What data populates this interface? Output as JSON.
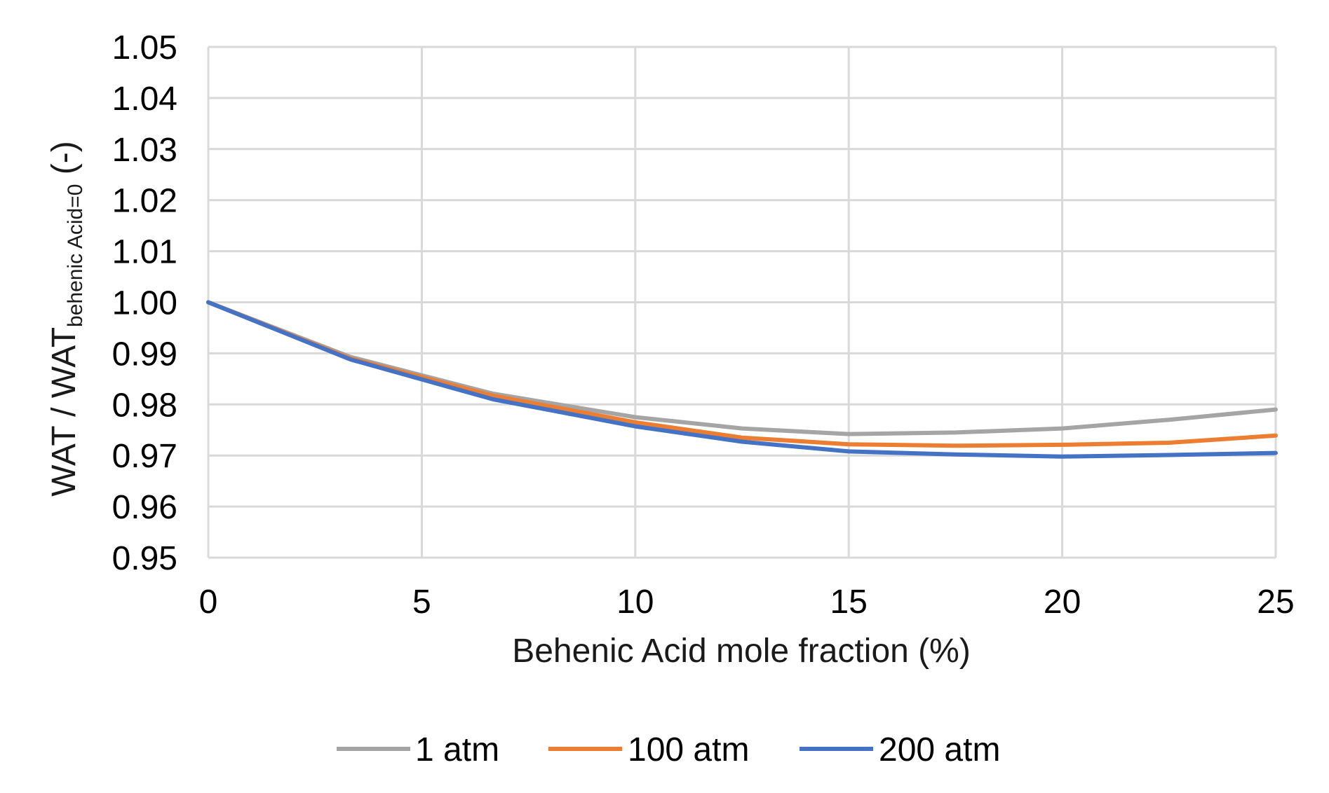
{
  "chart_data": {
    "type": "line",
    "title": "",
    "xlabel": "Behenic Acid mole fraction (%)",
    "ylabel": {
      "main": "WAT / WAT",
      "subscript": "behenic Acid=0",
      "suffix": " (-)"
    },
    "xlim": [
      0,
      25
    ],
    "ylim": [
      0.95,
      1.05
    ],
    "xticks": [
      0,
      5,
      10,
      15,
      20,
      25
    ],
    "xtick_labels": [
      "0",
      "5",
      "10",
      "15",
      "20",
      "25"
    ],
    "yticks": [
      0.95,
      0.96,
      0.97,
      0.98,
      0.99,
      1.0,
      1.01,
      1.02,
      1.03,
      1.04,
      1.05
    ],
    "ytick_labels": [
      "0.95",
      "0.96",
      "0.97",
      "0.98",
      "0.99",
      "1.00",
      "1.01",
      "1.02",
      "1.03",
      "1.04",
      "1.05"
    ],
    "grid": true,
    "legend_position": "bottom",
    "series": [
      {
        "name": "1 atm",
        "color": "#a5a5a5",
        "x": [
          0,
          3.33,
          6.67,
          10,
          12.5,
          15,
          17.5,
          20,
          22.5,
          25
        ],
        "y": [
          1.0,
          0.9893,
          0.9821,
          0.9775,
          0.9753,
          0.9742,
          0.9745,
          0.9753,
          0.977,
          0.979
        ]
      },
      {
        "name": "100 atm",
        "color": "#ed7d31",
        "x": [
          0,
          3.33,
          6.67,
          10,
          12.5,
          15,
          17.5,
          20,
          22.5,
          25
        ],
        "y": [
          1.0,
          0.989,
          0.9817,
          0.9765,
          0.9735,
          0.9722,
          0.9719,
          0.9721,
          0.9725,
          0.9739
        ]
      },
      {
        "name": "200 atm",
        "color": "#4472c4",
        "x": [
          0,
          3.33,
          6.67,
          10,
          12.5,
          15,
          17.5,
          20,
          22.5,
          25
        ],
        "y": [
          1.0,
          0.9888,
          0.981,
          0.9757,
          0.9727,
          0.9708,
          0.9702,
          0.9698,
          0.9701,
          0.9705
        ]
      }
    ]
  }
}
